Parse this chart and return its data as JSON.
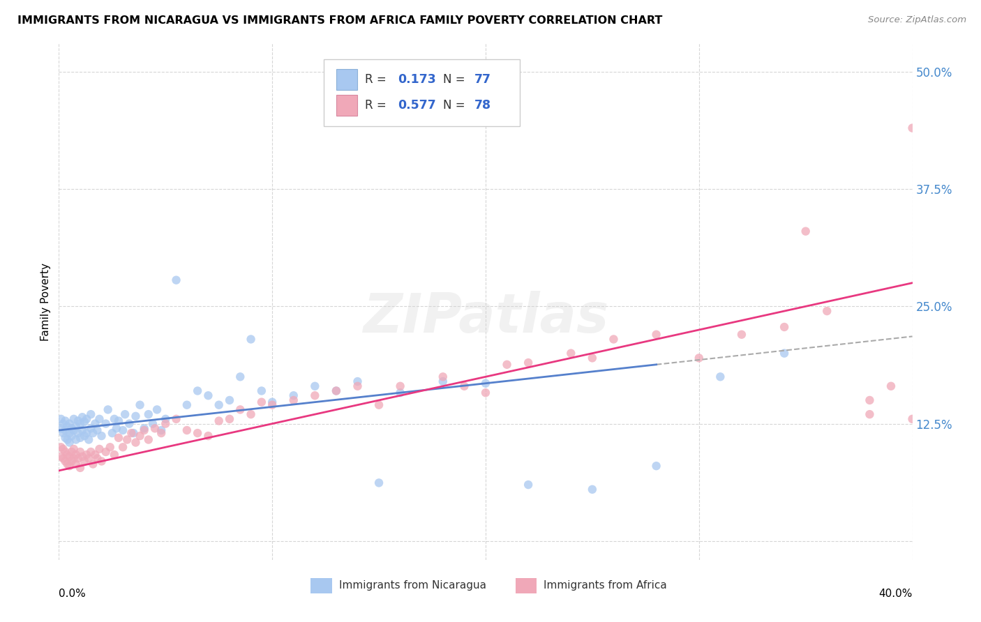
{
  "title": "IMMIGRANTS FROM NICARAGUA VS IMMIGRANTS FROM AFRICA FAMILY POVERTY CORRELATION CHART",
  "source": "Source: ZipAtlas.com",
  "ylabel": "Family Poverty",
  "yticks": [
    0.0,
    0.125,
    0.25,
    0.375,
    0.5
  ],
  "ytick_labels": [
    "",
    "12.5%",
    "25.0%",
    "37.5%",
    "50.0%"
  ],
  "xlim": [
    0.0,
    0.4
  ],
  "ylim": [
    -0.02,
    0.53
  ],
  "color_nicaragua": "#a8c8f0",
  "color_africa": "#f0a8b8",
  "trendline_nicaragua_color": "#5580cc",
  "trendline_africa_color": "#e83880",
  "trendline_dashed_color": "#aaaaaa",
  "nicaragua_x": [
    0.001,
    0.001,
    0.002,
    0.002,
    0.003,
    0.003,
    0.003,
    0.004,
    0.004,
    0.005,
    0.005,
    0.005,
    0.006,
    0.006,
    0.007,
    0.007,
    0.008,
    0.008,
    0.009,
    0.009,
    0.01,
    0.01,
    0.011,
    0.011,
    0.012,
    0.012,
    0.013,
    0.013,
    0.014,
    0.015,
    0.015,
    0.016,
    0.017,
    0.018,
    0.019,
    0.02,
    0.022,
    0.023,
    0.025,
    0.026,
    0.027,
    0.028,
    0.03,
    0.031,
    0.033,
    0.035,
    0.036,
    0.038,
    0.04,
    0.042,
    0.044,
    0.046,
    0.048,
    0.05,
    0.055,
    0.06,
    0.065,
    0.07,
    0.075,
    0.08,
    0.085,
    0.09,
    0.095,
    0.1,
    0.11,
    0.12,
    0.13,
    0.14,
    0.15,
    0.16,
    0.18,
    0.2,
    0.22,
    0.25,
    0.28,
    0.31,
    0.34
  ],
  "nicaragua_y": [
    0.12,
    0.13,
    0.115,
    0.125,
    0.11,
    0.118,
    0.128,
    0.108,
    0.122,
    0.105,
    0.115,
    0.125,
    0.112,
    0.12,
    0.118,
    0.13,
    0.108,
    0.122,
    0.115,
    0.128,
    0.11,
    0.125,
    0.118,
    0.132,
    0.112,
    0.127,
    0.115,
    0.13,
    0.108,
    0.12,
    0.135,
    0.115,
    0.125,
    0.118,
    0.13,
    0.112,
    0.125,
    0.14,
    0.115,
    0.13,
    0.12,
    0.128,
    0.118,
    0.135,
    0.125,
    0.115,
    0.133,
    0.145,
    0.12,
    0.135,
    0.125,
    0.14,
    0.118,
    0.13,
    0.278,
    0.145,
    0.16,
    0.155,
    0.145,
    0.15,
    0.175,
    0.215,
    0.16,
    0.148,
    0.155,
    0.165,
    0.16,
    0.17,
    0.062,
    0.158,
    0.17,
    0.168,
    0.06,
    0.055,
    0.08,
    0.175,
    0.2
  ],
  "africa_x": [
    0.001,
    0.001,
    0.002,
    0.002,
    0.003,
    0.003,
    0.004,
    0.004,
    0.005,
    0.005,
    0.006,
    0.006,
    0.007,
    0.007,
    0.008,
    0.008,
    0.009,
    0.01,
    0.01,
    0.011,
    0.012,
    0.013,
    0.014,
    0.015,
    0.016,
    0.017,
    0.018,
    0.019,
    0.02,
    0.022,
    0.024,
    0.026,
    0.028,
    0.03,
    0.032,
    0.034,
    0.036,
    0.038,
    0.04,
    0.042,
    0.045,
    0.048,
    0.05,
    0.055,
    0.06,
    0.065,
    0.07,
    0.075,
    0.08,
    0.085,
    0.09,
    0.095,
    0.1,
    0.11,
    0.12,
    0.13,
    0.14,
    0.15,
    0.16,
    0.18,
    0.19,
    0.2,
    0.21,
    0.22,
    0.24,
    0.25,
    0.26,
    0.28,
    0.3,
    0.32,
    0.34,
    0.35,
    0.36,
    0.38,
    0.38,
    0.39,
    0.4,
    0.4
  ],
  "africa_y": [
    0.09,
    0.1,
    0.088,
    0.098,
    0.085,
    0.095,
    0.082,
    0.092,
    0.08,
    0.09,
    0.085,
    0.095,
    0.088,
    0.098,
    0.082,
    0.092,
    0.088,
    0.078,
    0.095,
    0.09,
    0.085,
    0.092,
    0.088,
    0.095,
    0.082,
    0.092,
    0.088,
    0.098,
    0.085,
    0.095,
    0.1,
    0.092,
    0.11,
    0.1,
    0.108,
    0.115,
    0.105,
    0.112,
    0.118,
    0.108,
    0.12,
    0.115,
    0.125,
    0.13,
    0.118,
    0.115,
    0.112,
    0.128,
    0.13,
    0.14,
    0.135,
    0.148,
    0.145,
    0.15,
    0.155,
    0.16,
    0.165,
    0.145,
    0.165,
    0.175,
    0.165,
    0.158,
    0.188,
    0.19,
    0.2,
    0.195,
    0.215,
    0.22,
    0.195,
    0.22,
    0.228,
    0.33,
    0.245,
    0.15,
    0.135,
    0.165,
    0.13,
    0.44
  ]
}
